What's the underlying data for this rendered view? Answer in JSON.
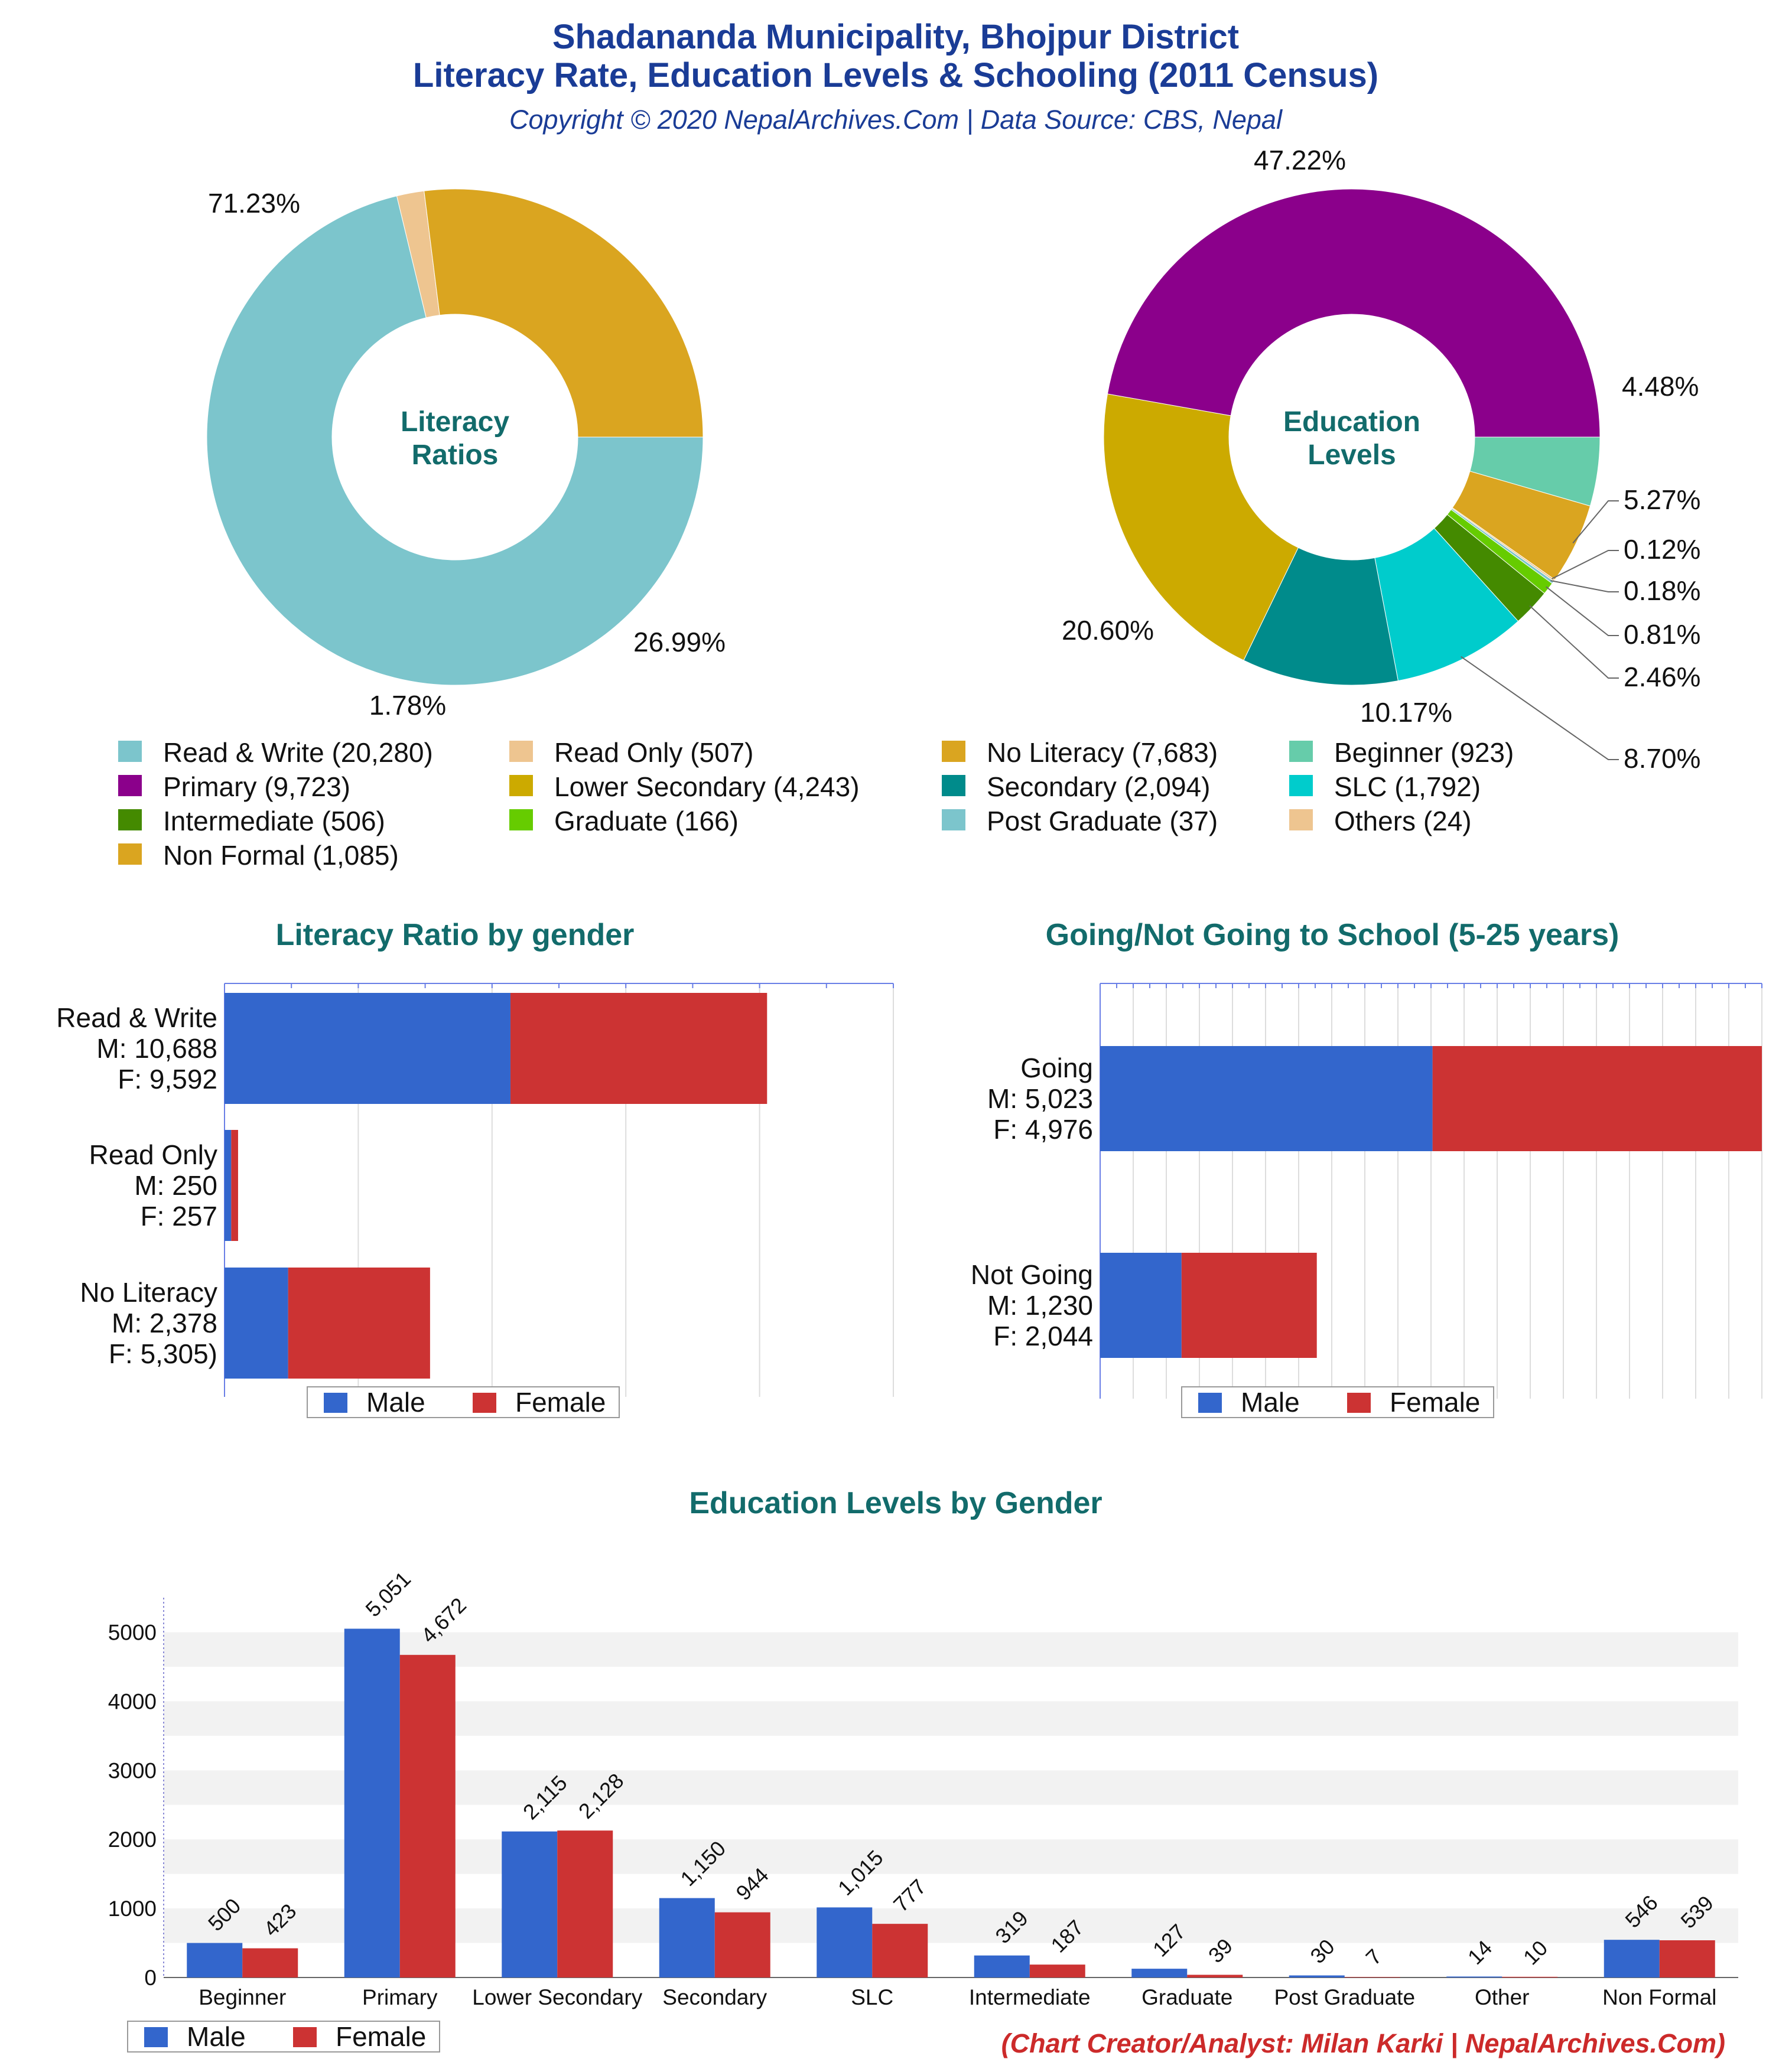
{
  "header": {
    "title_line1": "Shadananda Municipality, Bhojpur District",
    "title_line2": "Literacy Rate, Education Levels & Schooling (2011 Census)",
    "subtitle": "Copyright © 2020 NepalArchives.Com | Data Source: CBS, Nepal",
    "title_color": "#1a3c96",
    "heading_color": "#126b6b"
  },
  "footer": {
    "credit": "(Chart Creator/Analyst: Milan Karki | NepalArchives.Com)",
    "credit_color": "#cc2a2a"
  },
  "colors": {
    "male": "#3366cc",
    "female": "#cc3333"
  },
  "chart_data": [
    {
      "id": "literacy-donut",
      "type": "pie",
      "center_label": [
        "Literacy",
        "Ratios"
      ],
      "slices": [
        {
          "name": "Read & Write",
          "value": 20280,
          "pct": "71.23%",
          "color": "#7cc5cc"
        },
        {
          "name": "Read Only",
          "value": 507,
          "pct": "1.78%",
          "color": "#eec590"
        },
        {
          "name": "No Literacy",
          "value": 7683,
          "pct": "26.99%",
          "color": "#daa520"
        }
      ]
    },
    {
      "id": "education-donut",
      "type": "pie",
      "center_label": [
        "Education",
        "Levels"
      ],
      "slices": [
        {
          "name": "Beginner",
          "value": 923,
          "pct": "4.48%",
          "color": "#66ccaa"
        },
        {
          "name": "Non Formal",
          "value": 1085,
          "pct": "5.27%",
          "color": "#daa520"
        },
        {
          "name": "Others",
          "value": 24,
          "pct": "0.12%",
          "color": "#eec590"
        },
        {
          "name": "Post Graduate",
          "value": 37,
          "pct": "0.18%",
          "color": "#7cc5cc"
        },
        {
          "name": "Graduate",
          "value": 166,
          "pct": "0.81%",
          "color": "#66cc00"
        },
        {
          "name": "Intermediate",
          "value": 506,
          "pct": "2.46%",
          "color": "#448a00"
        },
        {
          "name": "SLC",
          "value": 1792,
          "pct": "8.70%",
          "color": "#00cccc"
        },
        {
          "name": "Secondary",
          "value": 2094,
          "pct": "10.17%",
          "color": "#008b8b"
        },
        {
          "name": "Lower Secondary",
          "value": 4243,
          "pct": "20.60%",
          "color": "#ccaa00"
        },
        {
          "name": "Primary",
          "value": 9723,
          "pct": "47.22%",
          "color": "#8b008b"
        }
      ]
    },
    {
      "id": "literacy-gender",
      "type": "bar",
      "title": "Literacy Ratio by gender",
      "orientation": "horizontal-stacked",
      "xlim": [
        0,
        25000
      ],
      "rows": [
        {
          "label": [
            "Read & Write",
            "M: 10,688",
            "F: 9,592"
          ],
          "male": 10688,
          "female": 9592
        },
        {
          "label": [
            "Read Only",
            "M: 250",
            "F: 257"
          ],
          "male": 250,
          "female": 257
        },
        {
          "label": [
            "No Literacy",
            "M: 2,378",
            "F: 5,305)"
          ],
          "male": 2378,
          "female": 5305
        }
      ],
      "legend": [
        "Male",
        "Female"
      ]
    },
    {
      "id": "school-gender",
      "type": "bar",
      "title": "Going/Not Going to School (5-25 years)",
      "orientation": "horizontal-stacked",
      "xlim": [
        0,
        9999
      ],
      "rows": [
        {
          "label": [
            "Going",
            "M: 5,023",
            "F: 4,976"
          ],
          "male": 5023,
          "female": 4976
        },
        {
          "label": [
            "Not Going",
            "M: 1,230",
            "F: 2,044"
          ],
          "male": 1230,
          "female": 2044
        }
      ],
      "legend": [
        "Male",
        "Female"
      ]
    },
    {
      "id": "education-gender",
      "type": "bar",
      "title": "Education Levels by Gender",
      "ylim": [
        0,
        5500
      ],
      "yticks": [
        0,
        1000,
        2000,
        3000,
        4000,
        5000
      ],
      "categories": [
        "Beginner",
        "Primary",
        "Lower Secondary",
        "Secondary",
        "SLC",
        "Intermediate",
        "Graduate",
        "Post Graduate",
        "Other",
        "Non Formal"
      ],
      "series": [
        {
          "name": "Male",
          "values": [
            500,
            5051,
            2115,
            1150,
            1015,
            319,
            127,
            30,
            14,
            546
          ],
          "labels": [
            "500",
            "5,051",
            "2,115",
            "1,150",
            "1,015",
            "319",
            "127",
            "30",
            "14",
            "546"
          ]
        },
        {
          "name": "Female",
          "values": [
            423,
            4672,
            2128,
            944,
            777,
            187,
            39,
            7,
            10,
            539
          ],
          "labels": [
            "423",
            "4,672",
            "2,128",
            "944",
            "777",
            "187",
            "39",
            "7",
            "10",
            "539"
          ]
        }
      ]
    }
  ],
  "legend_main": [
    {
      "label": "Read & Write (20,280)",
      "color": "#7cc5cc"
    },
    {
      "label": "Read Only (507)",
      "color": "#eec590"
    },
    {
      "label": "No Literacy (7,683)",
      "color": "#daa520"
    },
    {
      "label": "Beginner (923)",
      "color": "#66ccaa"
    },
    {
      "label": "Primary (9,723)",
      "color": "#8b008b"
    },
    {
      "label": "Lower Secondary (4,243)",
      "color": "#ccaa00"
    },
    {
      "label": "Secondary (2,094)",
      "color": "#008b8b"
    },
    {
      "label": "SLC (1,792)",
      "color": "#00cccc"
    },
    {
      "label": "Intermediate (506)",
      "color": "#448a00"
    },
    {
      "label": "Graduate (166)",
      "color": "#66cc00"
    },
    {
      "label": "Post Graduate (37)",
      "color": "#7cc5cc"
    },
    {
      "label": "Others (24)",
      "color": "#eec590"
    },
    {
      "label": "Non Formal (1,085)",
      "color": "#daa520"
    }
  ]
}
